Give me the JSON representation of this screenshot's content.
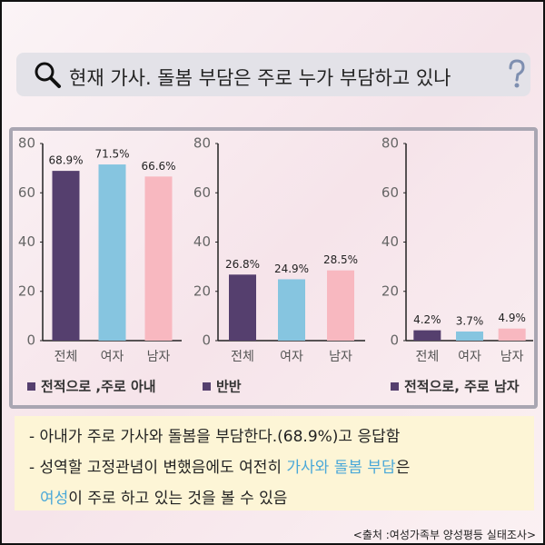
{
  "title": "현재 가사. 돌봄 부담은 주로 누가 부담하고 있나",
  "chart_data": [
    {
      "type": "bar",
      "categories": [
        "전체",
        "여자",
        "남자"
      ],
      "values": [
        68.9,
        71.5,
        66.6
      ],
      "value_labels": [
        "68.9%",
        "71.5%",
        "66.6%"
      ],
      "colors": [
        "#553f6e",
        "#86c5e0",
        "#f8b8c0"
      ],
      "ylim": [
        0,
        80
      ],
      "yticks": [
        0,
        20,
        40,
        60,
        80
      ],
      "legend": "전적으로 ,주로 아내"
    },
    {
      "type": "bar",
      "categories": [
        "전체",
        "여자",
        "남자"
      ],
      "values": [
        26.8,
        24.9,
        28.5
      ],
      "value_labels": [
        "26.8%",
        "24.9%",
        "28.5%"
      ],
      "colors": [
        "#553f6e",
        "#86c5e0",
        "#f8b8c0"
      ],
      "ylim": [
        0,
        80
      ],
      "yticks": [
        0,
        20,
        40,
        60,
        80
      ],
      "legend": "반반"
    },
    {
      "type": "bar",
      "categories": [
        "전체",
        "여자",
        "남자"
      ],
      "values": [
        4.2,
        3.7,
        4.9
      ],
      "value_labels": [
        "4.2%",
        "3.7%",
        "4.9%"
      ],
      "colors": [
        "#553f6e",
        "#86c5e0",
        "#f8b8c0"
      ],
      "ylim": [
        0,
        80
      ],
      "yticks": [
        0,
        20,
        40,
        60,
        80
      ],
      "legend": "전적으로, 주로 남자"
    }
  ],
  "notes": [
    [
      {
        "text": "- 아내가 주로 가사와 돌봄을 부담한다.(68.9%)고 응답함",
        "color": "#222222"
      }
    ],
    [
      {
        "text": "- 성역할 고정관념이 변했음에도 여전히 ",
        "color": "#222222"
      },
      {
        "text": "가사와 돌봄 부담",
        "color": "#4aa8d8"
      },
      {
        "text": "은",
        "color": "#222222"
      }
    ],
    [
      {
        "text": "여성",
        "color": "#4aa8d8"
      },
      {
        "text": "이 주로 하고 있는 것을 볼 수 있음",
        "color": "#222222"
      }
    ]
  ],
  "source": "<출처 :여성가족부 양성평등 실태조사>"
}
